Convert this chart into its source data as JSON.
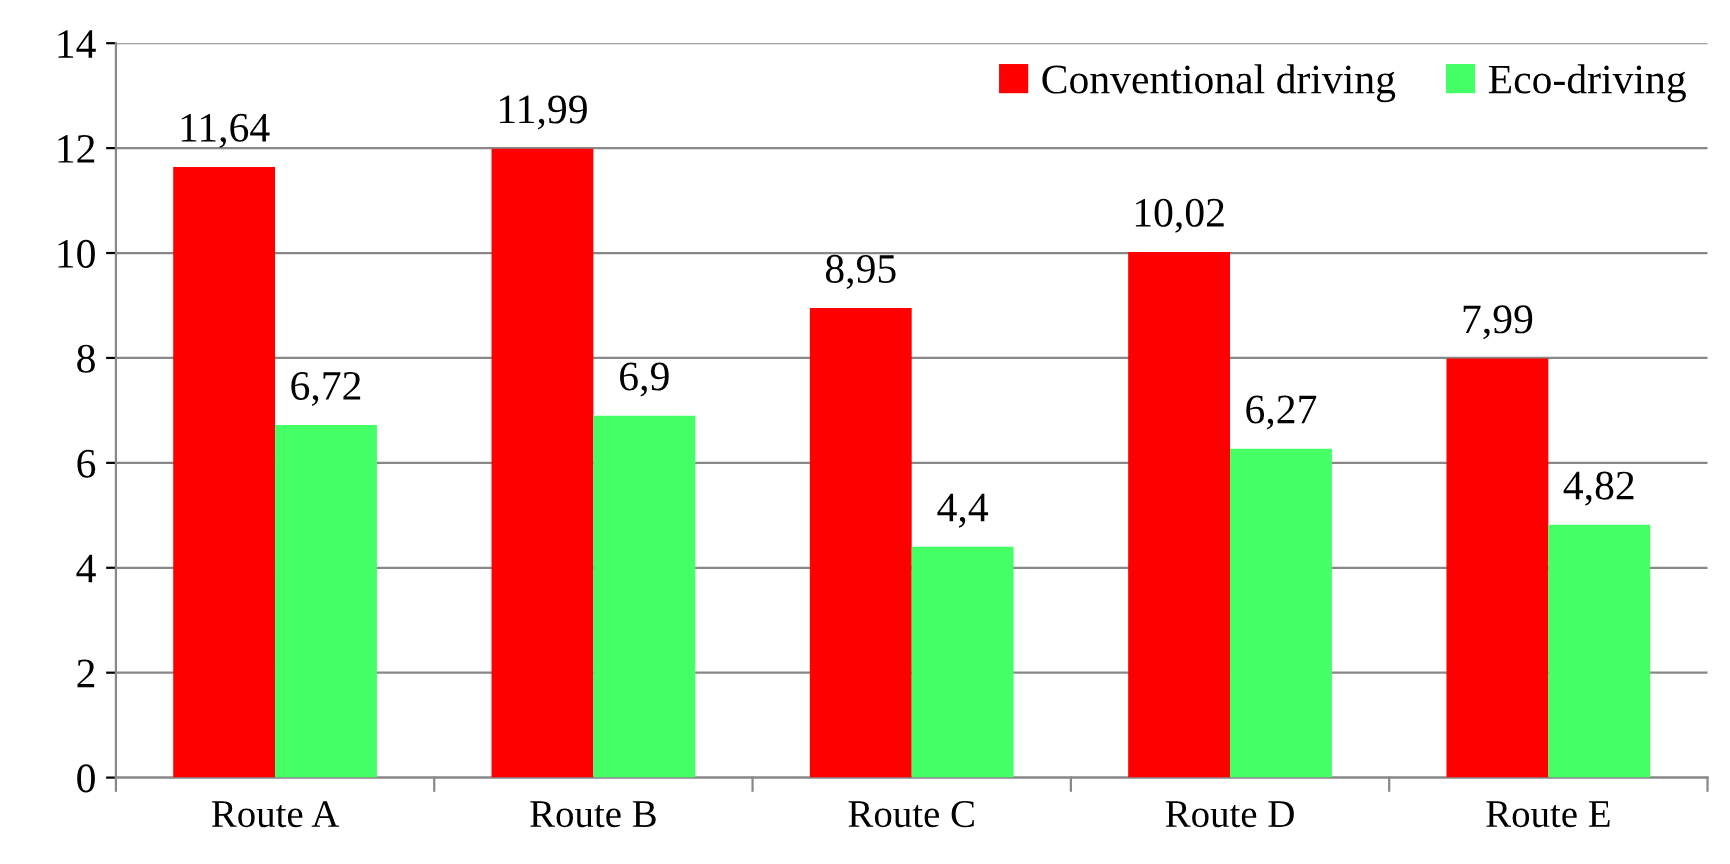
{
  "chart_data": {
    "type": "bar",
    "categories": [
      "Route A",
      "Route B",
      "Route C",
      "Route D",
      "Route E"
    ],
    "series": [
      {
        "name": "Conventional driving",
        "color": "#ff0000",
        "values": [
          11.64,
          11.99,
          8.95,
          10.02,
          7.99
        ],
        "value_labels": [
          "11,64",
          "11,99",
          "8,95",
          "10,02",
          "7,99"
        ]
      },
      {
        "name": "Eco-driving",
        "color": "#44ff66",
        "values": [
          6.72,
          6.9,
          4.4,
          6.27,
          4.82
        ],
        "value_labels": [
          "6,72",
          "6,9",
          "4,4",
          "6,27",
          "4,82"
        ]
      }
    ],
    "ylim": [
      0,
      14
    ],
    "yticks": [
      0,
      2,
      4,
      6,
      8,
      10,
      12,
      14
    ],
    "grid": "y",
    "legend": "top right"
  }
}
